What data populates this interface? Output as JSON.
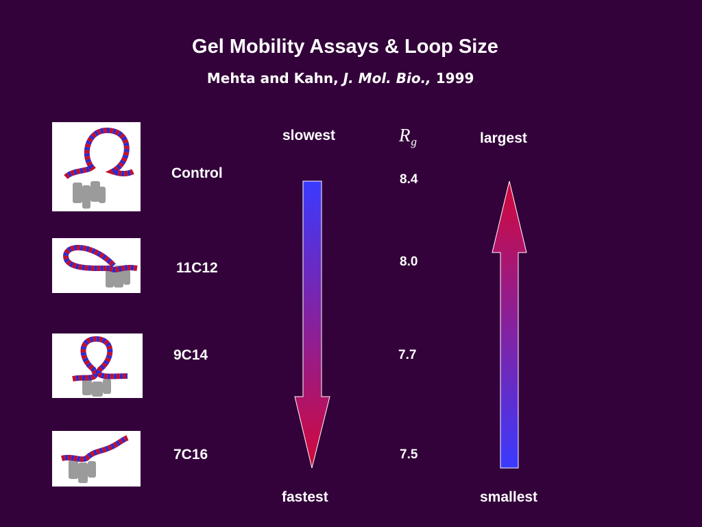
{
  "slide": {
    "title": "Gel Mobility Assays & Loop Size",
    "subtitle": {
      "authors": "Mehta and Kahn,",
      "journal": "J. Mol. Bio.,",
      "year": "1999",
      "trailing_dots": "·,·"
    }
  },
  "rows": [
    {
      "label": "Control",
      "rg": "8.4",
      "thumbnail_icon": "dna-loop-protein-model-icon"
    },
    {
      "label": "11C12",
      "rg": "8.0",
      "thumbnail_icon": "dna-loop-protein-model-icon"
    },
    {
      "label": "9C14",
      "rg": "7.7",
      "thumbnail_icon": "dna-loop-protein-model-icon"
    },
    {
      "label": "7C16",
      "rg": "7.5",
      "thumbnail_icon": "dna-loop-protein-model-icon"
    }
  ],
  "mobility_arrow": {
    "top_label": "slowest",
    "bottom_label": "fastest",
    "direction": "down",
    "gradient": [
      "#3a3aff",
      "#d4083a"
    ]
  },
  "size_arrow": {
    "top_label": "largest",
    "bottom_label": "smallest",
    "direction": "up",
    "gradient": [
      "#3a3aff",
      "#d4083a"
    ]
  },
  "rg_header": {
    "symbol": "R",
    "subscript": "g"
  },
  "colors": {
    "background": "#33023a",
    "text": "#ffffff",
    "dna_strand_a": "#c0102e",
    "dna_strand_b": "#2a2ad0",
    "protein": "#7a7a7a"
  }
}
